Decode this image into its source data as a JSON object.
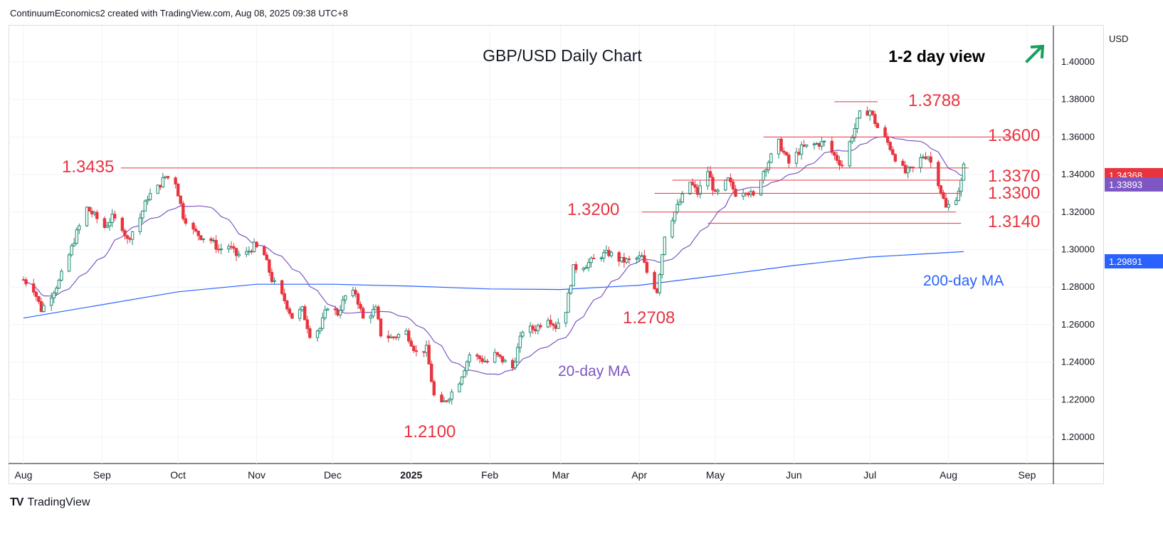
{
  "header": {
    "attribution": "ContinuumEconomics2 created with TradingView.com, Aug 08, 2025 09:38 UTC+8"
  },
  "footer": {
    "brand": "TradingView"
  },
  "colors": {
    "up": "#1e8a72",
    "down": "#e8343f",
    "ma20": "#7e57c2",
    "ma200": "#2962ff",
    "level_line": "#e8343f",
    "label_red": "#e8343f",
    "arrow": "#17a05d"
  },
  "chart_data": {
    "type": "candlestick",
    "title": "GBP/USD Daily Chart",
    "view": "1-2 day view",
    "view_arrow_icon": "arrow-up-right-icon",
    "currency": "USD",
    "ylim": [
      1.185,
      1.41
    ],
    "y_ticks": [
      "1.40000",
      "1.38000",
      "1.36000",
      "1.34000",
      "1.32000",
      "1.30000",
      "1.28000",
      "1.26000",
      "1.24000",
      "1.22000",
      "1.20000"
    ],
    "x_ticks": [
      "Aug",
      "Sep",
      "Oct",
      "Nov",
      "Dec",
      "2025",
      "Feb",
      "Mar",
      "Apr",
      "May",
      "Jun",
      "Jul",
      "Aug",
      "Sep"
    ],
    "last_price": "1.34368",
    "ma20_value": "1.33893",
    "ma200_value": "1.29891",
    "ma20_label": "20-day MA",
    "ma200_label": "200-day MA",
    "levels": [
      {
        "label": "1.3788",
        "value": 1.3788
      },
      {
        "label": "1.3600",
        "value": 1.36
      },
      {
        "label": "1.3435",
        "value": 1.3435
      },
      {
        "label": "1.3370",
        "value": 1.337
      },
      {
        "label": "1.3300",
        "value": 1.33
      },
      {
        "label": "1.3200",
        "value": 1.32
      },
      {
        "label": "1.3140",
        "value": 1.314
      },
      {
        "label": "1.2708",
        "value": 1.2708
      },
      {
        "label": "1.2100",
        "value": 1.21
      }
    ],
    "close_path": [
      [
        "2024-08-01",
        1.284
      ],
      [
        "2024-08-05",
        1.279
      ],
      [
        "2024-08-08",
        1.268
      ],
      [
        "2024-08-12",
        1.276
      ],
      [
        "2024-08-15",
        1.283
      ],
      [
        "2024-08-19",
        1.297
      ],
      [
        "2024-08-22",
        1.309
      ],
      [
        "2024-08-26",
        1.322
      ],
      [
        "2024-08-29",
        1.318
      ],
      [
        "2024-09-02",
        1.312
      ],
      [
        "2024-09-05",
        1.317
      ],
      [
        "2024-09-09",
        1.312
      ],
      [
        "2024-09-11",
        1.305
      ],
      [
        "2024-09-16",
        1.317
      ],
      [
        "2024-09-19",
        1.328
      ],
      [
        "2024-09-23",
        1.333
      ],
      [
        "2024-09-26",
        1.339
      ],
      [
        "2024-09-30",
        1.336
      ],
      [
        "2024-10-03",
        1.318
      ],
      [
        "2024-10-07",
        1.31
      ],
      [
        "2024-10-10",
        1.307
      ],
      [
        "2024-10-14",
        1.305
      ],
      [
        "2024-10-17",
        1.3
      ],
      [
        "2024-10-21",
        1.302
      ],
      [
        "2024-10-24",
        1.297
      ],
      [
        "2024-10-28",
        1.298
      ],
      [
        "2024-10-31",
        1.302
      ],
      [
        "2024-11-04",
        1.297
      ],
      [
        "2024-11-07",
        1.284
      ],
      [
        "2024-11-12",
        1.273
      ],
      [
        "2024-11-15",
        1.264
      ],
      [
        "2024-11-19",
        1.268
      ],
      [
        "2024-11-22",
        1.255
      ],
      [
        "2024-11-26",
        1.258
      ],
      [
        "2024-11-29",
        1.27
      ],
      [
        "2024-12-03",
        1.266
      ],
      [
        "2024-12-06",
        1.275
      ],
      [
        "2024-12-10",
        1.277
      ],
      [
        "2024-12-13",
        1.263
      ],
      [
        "2024-12-18",
        1.268
      ],
      [
        "2024-12-20",
        1.255
      ],
      [
        "2024-12-24",
        1.253
      ],
      [
        "2024-12-30",
        1.256
      ],
      [
        "2025-01-03",
        1.245
      ],
      [
        "2025-01-07",
        1.247
      ],
      [
        "2025-01-10",
        1.222
      ],
      [
        "2025-01-13",
        1.217
      ],
      [
        "2025-01-16",
        1.222
      ],
      [
        "2025-01-20",
        1.23
      ],
      [
        "2025-01-24",
        1.244
      ],
      [
        "2025-01-28",
        1.242
      ],
      [
        "2025-01-31",
        1.24
      ],
      [
        "2025-02-03",
        1.244
      ],
      [
        "2025-02-06",
        1.241
      ],
      [
        "2025-02-10",
        1.237
      ],
      [
        "2025-02-14",
        1.257
      ],
      [
        "2025-02-19",
        1.258
      ],
      [
        "2025-02-24",
        1.264
      ],
      [
        "2025-02-27",
        1.259
      ],
      [
        "2025-03-03",
        1.268
      ],
      [
        "2025-03-06",
        1.29
      ],
      [
        "2025-03-11",
        1.292
      ],
      [
        "2025-03-17",
        1.297
      ],
      [
        "2025-03-20",
        1.298
      ],
      [
        "2025-03-25",
        1.294
      ],
      [
        "2025-03-28",
        1.294
      ],
      [
        "2025-04-02",
        1.296
      ],
      [
        "2025-04-04",
        1.288
      ],
      [
        "2025-04-08",
        1.278
      ],
      [
        "2025-04-11",
        1.308
      ],
      [
        "2025-04-15",
        1.32
      ],
      [
        "2025-04-21",
        1.336
      ],
      [
        "2025-04-24",
        1.33
      ],
      [
        "2025-04-28",
        1.342
      ],
      [
        "2025-05-01",
        1.329
      ],
      [
        "2025-05-06",
        1.337
      ],
      [
        "2025-05-09",
        1.33
      ],
      [
        "2025-05-13",
        1.332
      ],
      [
        "2025-05-16",
        1.328
      ],
      [
        "2025-05-20",
        1.342
      ],
      [
        "2025-05-26",
        1.357
      ],
      [
        "2025-05-30",
        1.346
      ],
      [
        "2025-06-04",
        1.354
      ],
      [
        "2025-06-09",
        1.356
      ],
      [
        "2025-06-13",
        1.357
      ],
      [
        "2025-06-17",
        1.35
      ],
      [
        "2025-06-20",
        1.345
      ],
      [
        "2025-06-24",
        1.361
      ],
      [
        "2025-06-27",
        1.372
      ],
      [
        "2025-07-01",
        1.374
      ],
      [
        "2025-07-04",
        1.365
      ],
      [
        "2025-07-08",
        1.357
      ],
      [
        "2025-07-11",
        1.349
      ],
      [
        "2025-07-15",
        1.341
      ],
      [
        "2025-07-18",
        1.343
      ],
      [
        "2025-07-22",
        1.35
      ],
      [
        "2025-07-24",
        1.35
      ],
      [
        "2025-07-28",
        1.336
      ],
      [
        "2025-07-31",
        1.322
      ],
      [
        "2025-08-04",
        1.328
      ],
      [
        "2025-08-06",
        1.336
      ],
      [
        "2025-08-07",
        1.344
      ]
    ]
  }
}
